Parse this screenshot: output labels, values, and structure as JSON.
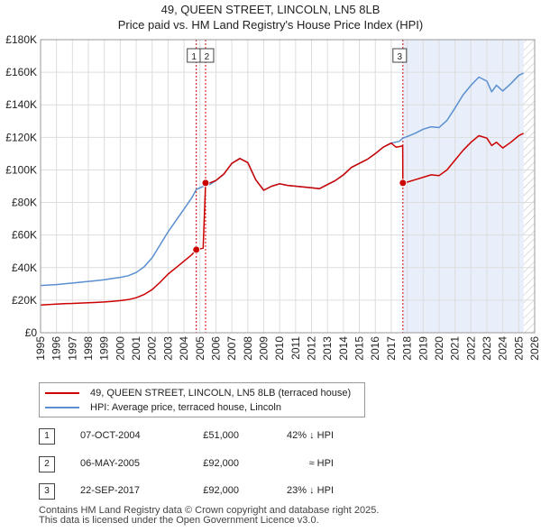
{
  "chart_data": {
    "type": "line",
    "title": "49, QUEEN STREET, LINCOLN, LN5 8LB",
    "subtitle": "Price paid vs. HM Land Registry's House Price Index (HPI)",
    "x_range": [
      1995,
      2026
    ],
    "ylim": [
      0,
      180000
    ],
    "y_ticks": [
      0,
      20000,
      40000,
      60000,
      80000,
      100000,
      120000,
      140000,
      160000,
      180000
    ],
    "y_tick_labels": [
      "£0",
      "£20K",
      "£40K",
      "£60K",
      "£80K",
      "£100K",
      "£120K",
      "£140K",
      "£160K",
      "£180K"
    ],
    "x_ticks": [
      1995,
      1996,
      1997,
      1998,
      1999,
      2000,
      2001,
      2002,
      2003,
      2004,
      2005,
      2006,
      2007,
      2008,
      2009,
      2010,
      2011,
      2012,
      2013,
      2014,
      2015,
      2016,
      2017,
      2018,
      2019,
      2020,
      2021,
      2022,
      2023,
      2024,
      2025,
      2026
    ],
    "grid": true,
    "hatched_after": 2025.3,
    "shaded_span": [
      2017.75,
      2025.3
    ],
    "series": [
      {
        "name": "49, QUEEN STREET, LINCOLN, LN5 8LB (terraced house)",
        "color": "#cc0000",
        "x": [
          1995.0,
          1995.5,
          1996.0,
          1996.5,
          1997.0,
          1997.5,
          1998.0,
          1998.5,
          1999.0,
          1999.5,
          2000.0,
          2000.5,
          2001.0,
          2001.5,
          2002.0,
          2002.5,
          2003.0,
          2003.5,
          2004.0,
          2004.5,
          2004.77,
          2005.0,
          2005.2,
          2005.35,
          2005.6,
          2006.0,
          2006.5,
          2007.0,
          2007.5,
          2008.0,
          2008.5,
          2009.0,
          2009.5,
          2010.0,
          2010.5,
          2011.0,
          2011.5,
          2012.0,
          2012.5,
          2013.0,
          2013.5,
          2014.0,
          2014.5,
          2015.0,
          2015.5,
          2016.0,
          2016.5,
          2017.0,
          2017.3,
          2017.6,
          2017.72,
          2017.73,
          2018.0,
          2018.5,
          2019.0,
          2019.5,
          2020.0,
          2020.5,
          2021.0,
          2021.5,
          2022.0,
          2022.5,
          2023.0,
          2023.3,
          2023.6,
          2024.0,
          2024.5,
          2025.0,
          2025.3
        ],
        "values": [
          17000,
          17300,
          17600,
          17900,
          18000,
          18200,
          18400,
          18600,
          18900,
          19300,
          19700,
          20300,
          21500,
          23500,
          26500,
          31000,
          36000,
          40000,
          44000,
          48000,
          51000,
          51500,
          52000,
          92000,
          92000,
          93500,
          97500,
          104000,
          107000,
          104500,
          94000,
          87500,
          90000,
          91500,
          90500,
          90000,
          89500,
          89000,
          88500,
          91000,
          93500,
          97000,
          101500,
          104000,
          106500,
          110000,
          114000,
          116500,
          114000,
          114500,
          115000,
          92000,
          92500,
          94000,
          95500,
          97000,
          96500,
          100000,
          106000,
          112000,
          117000,
          121000,
          119500,
          115000,
          117000,
          113500,
          117000,
          121000,
          122500
        ]
      },
      {
        "name": "HPI: Average price, terraced house, Lincoln",
        "color": "#5a8fd0",
        "x": [
          1995.0,
          1995.5,
          1996.0,
          1996.5,
          1997.0,
          1997.5,
          1998.0,
          1998.5,
          1999.0,
          1999.5,
          2000.0,
          2000.5,
          2001.0,
          2001.5,
          2002.0,
          2002.5,
          2003.0,
          2003.5,
          2004.0,
          2004.5,
          2004.77,
          2005.0,
          2005.35,
          2005.6,
          2006.0,
          2006.5,
          2007.0,
          2007.5,
          2008.0,
          2008.5,
          2009.0,
          2009.5,
          2010.0,
          2010.5,
          2011.0,
          2011.5,
          2012.0,
          2012.5,
          2013.0,
          2013.5,
          2014.0,
          2014.5,
          2015.0,
          2015.5,
          2016.0,
          2016.5,
          2017.0,
          2017.5,
          2017.73,
          2018.0,
          2018.5,
          2019.0,
          2019.5,
          2020.0,
          2020.5,
          2021.0,
          2021.5,
          2022.0,
          2022.5,
          2023.0,
          2023.3,
          2023.6,
          2024.0,
          2024.5,
          2025.0,
          2025.3
        ],
        "values": [
          29000,
          29300,
          29600,
          30000,
          30500,
          31000,
          31500,
          32000,
          32500,
          33300,
          34000,
          35000,
          37000,
          40500,
          46000,
          54000,
          62000,
          69000,
          76000,
          83000,
          88000,
          89000,
          90500,
          91000,
          93500,
          97500,
          104000,
          107000,
          104500,
          94000,
          87500,
          90000,
          91500,
          90500,
          90000,
          89500,
          89000,
          88500,
          91000,
          93500,
          97000,
          101500,
          104000,
          106500,
          110000,
          114000,
          116500,
          117500,
          119500,
          120500,
          122500,
          125000,
          126500,
          126000,
          130500,
          138000,
          146000,
          152000,
          157000,
          154500,
          148000,
          152000,
          148500,
          153000,
          158000,
          159500
        ]
      }
    ],
    "sales": [
      {
        "label": "1",
        "x": 2004.77,
        "value": 51000
      },
      {
        "label": "2",
        "x": 2005.35,
        "value": 92000
      },
      {
        "label": "3",
        "x": 2017.73,
        "value": 92000
      }
    ]
  },
  "legend": {
    "items": [
      {
        "label": "49, QUEEN STREET, LINCOLN, LN5 8LB (terraced house)",
        "color": "#cc0000"
      },
      {
        "label": "HPI: Average price, terraced house, Lincoln",
        "color": "#5a8fd0"
      }
    ]
  },
  "transactions": [
    {
      "num": "1",
      "date": "07-OCT-2004",
      "price": "£51,000",
      "hpi": "42% ↓ HPI"
    },
    {
      "num": "2",
      "date": "06-MAY-2005",
      "price": "£92,000",
      "hpi": "≈ HPI"
    },
    {
      "num": "3",
      "date": "22-SEP-2017",
      "price": "£92,000",
      "hpi": "23% ↓ HPI"
    }
  ],
  "footer": {
    "line1": "Contains HM Land Registry data © Crown copyright and database right 2025.",
    "line2": "This data is licensed under the Open Government Licence v3.0."
  }
}
